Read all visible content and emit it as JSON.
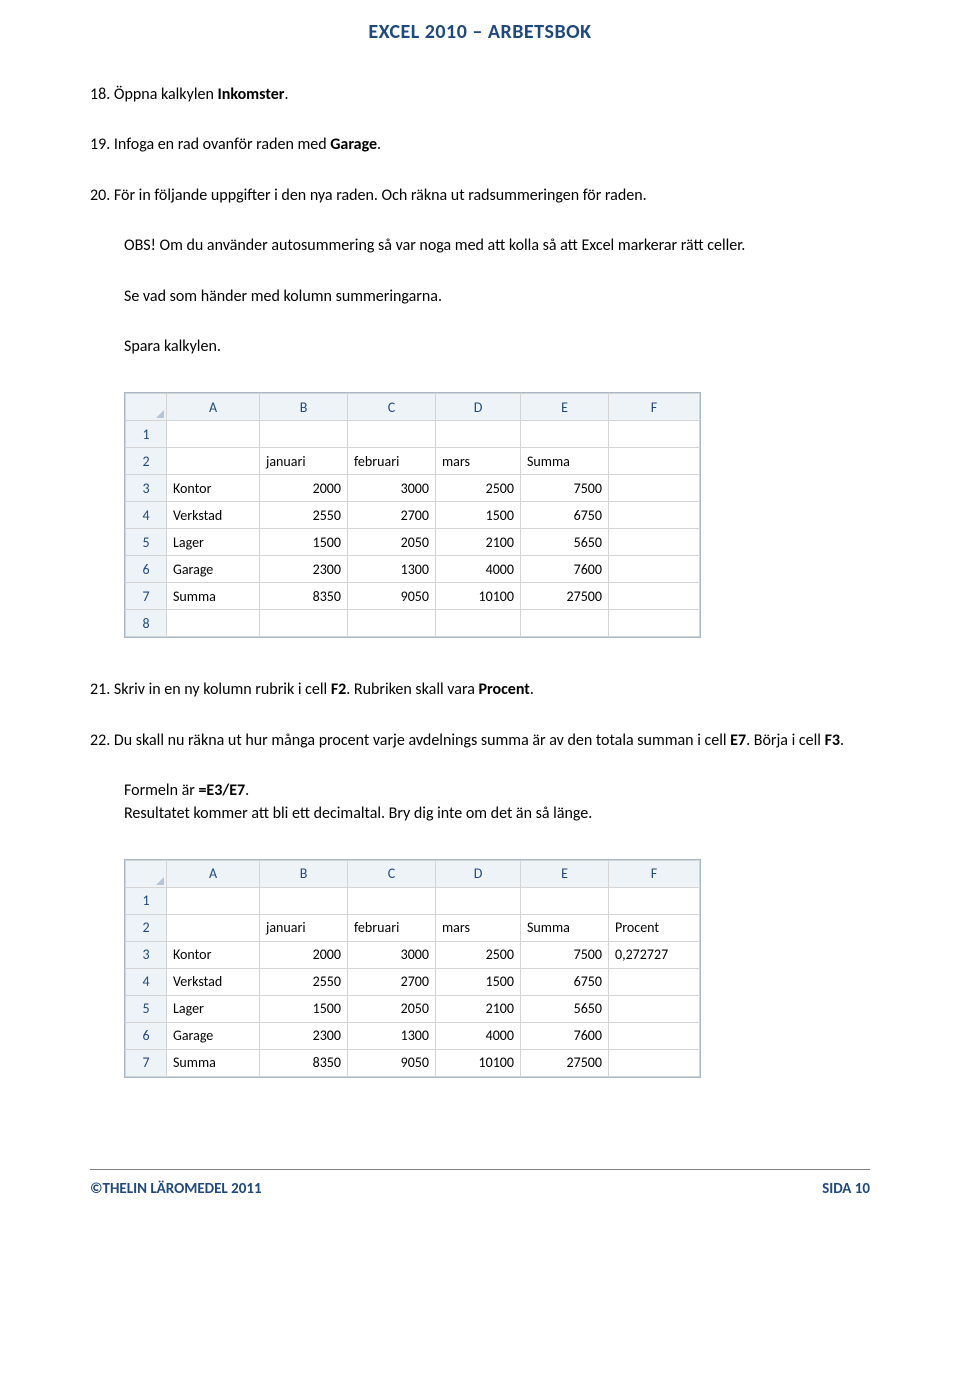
{
  "doc": {
    "title": "EXCEL 2010 – ARBETSBOK"
  },
  "p18": "18. Öppna kalkylen ",
  "p18b": "Inkomster",
  "p18c": ".",
  "p19": "19. Infoga en rad ovanför raden med ",
  "p19b": "Garage",
  "p19c": ".",
  "p20": "20. För in följande uppgifter i den nya raden. Och räkna ut radsummeringen för raden.",
  "p20a": "OBS! Om du använder autosummering så var noga med att kolla så att Excel markerar rätt celler.",
  "p20b": "Se vad som händer med kolumn summeringarna.",
  "p20c": "Spara kalkylen.",
  "table1": {
    "cols": [
      "A",
      "B",
      "C",
      "D",
      "E",
      "F"
    ],
    "rows": [
      {
        "n": "1",
        "a": "",
        "b": "",
        "c": "",
        "d": "",
        "e": "",
        "f": ""
      },
      {
        "n": "2",
        "a": "",
        "b": "januari",
        "c": "februari",
        "d": "mars",
        "e": "Summa",
        "f": ""
      },
      {
        "n": "3",
        "a": "Kontor",
        "b": "2000",
        "c": "3000",
        "d": "2500",
        "e": "7500",
        "f": ""
      },
      {
        "n": "4",
        "a": "Verkstad",
        "b": "2550",
        "c": "2700",
        "d": "1500",
        "e": "6750",
        "f": ""
      },
      {
        "n": "5",
        "a": "Lager",
        "b": "1500",
        "c": "2050",
        "d": "2100",
        "e": "5650",
        "f": ""
      },
      {
        "n": "6",
        "a": "Garage",
        "b": "2300",
        "c": "1300",
        "d": "4000",
        "e": "7600",
        "f": ""
      },
      {
        "n": "7",
        "a": "Summa",
        "b": "8350",
        "c": "9050",
        "d": "10100",
        "e": "27500",
        "f": ""
      },
      {
        "n": "8",
        "a": "",
        "b": "",
        "c": "",
        "d": "",
        "e": "",
        "f": ""
      }
    ]
  },
  "p21": "21. Skriv in en ny kolumn rubrik i cell ",
  "p21b": "F2",
  "p21c": ". Rubriken skall vara ",
  "p21d": "Procent",
  "p21e": ".",
  "p22": "22. Du skall nu räkna ut hur många procent varje avdelnings summa är av den totala summan i cell ",
  "p22b": "E7",
  "p22c": ". Börja i cell ",
  "p22d": "F3",
  "p22e": ".",
  "p22f": "Formeln är ",
  "p22g": "=E3/E7",
  "p22h": ".",
  "p22i": "Resultatet kommer att bli ett decimaltal. Bry dig inte om det än så länge.",
  "table2": {
    "cols": [
      "A",
      "B",
      "C",
      "D",
      "E",
      "F"
    ],
    "rows": [
      {
        "n": "1",
        "a": "",
        "b": "",
        "c": "",
        "d": "",
        "e": "",
        "f": ""
      },
      {
        "n": "2",
        "a": "",
        "b": "januari",
        "c": "februari",
        "d": "mars",
        "e": "Summa",
        "f": "Procent"
      },
      {
        "n": "3",
        "a": "Kontor",
        "b": "2000",
        "c": "3000",
        "d": "2500",
        "e": "7500",
        "f": "0,272727"
      },
      {
        "n": "4",
        "a": "Verkstad",
        "b": "2550",
        "c": "2700",
        "d": "1500",
        "e": "6750",
        "f": ""
      },
      {
        "n": "5",
        "a": "Lager",
        "b": "1500",
        "c": "2050",
        "d": "2100",
        "e": "5650",
        "f": ""
      },
      {
        "n": "6",
        "a": "Garage",
        "b": "2300",
        "c": "1300",
        "d": "4000",
        "e": "7600",
        "f": ""
      },
      {
        "n": "7",
        "a": "Summa",
        "b": "8350",
        "c": "9050",
        "d": "10100",
        "e": "27500",
        "f": ""
      }
    ]
  },
  "footer": {
    "left": "©THELIN LÄROMEDEL 2011",
    "right": "SIDA 10"
  }
}
